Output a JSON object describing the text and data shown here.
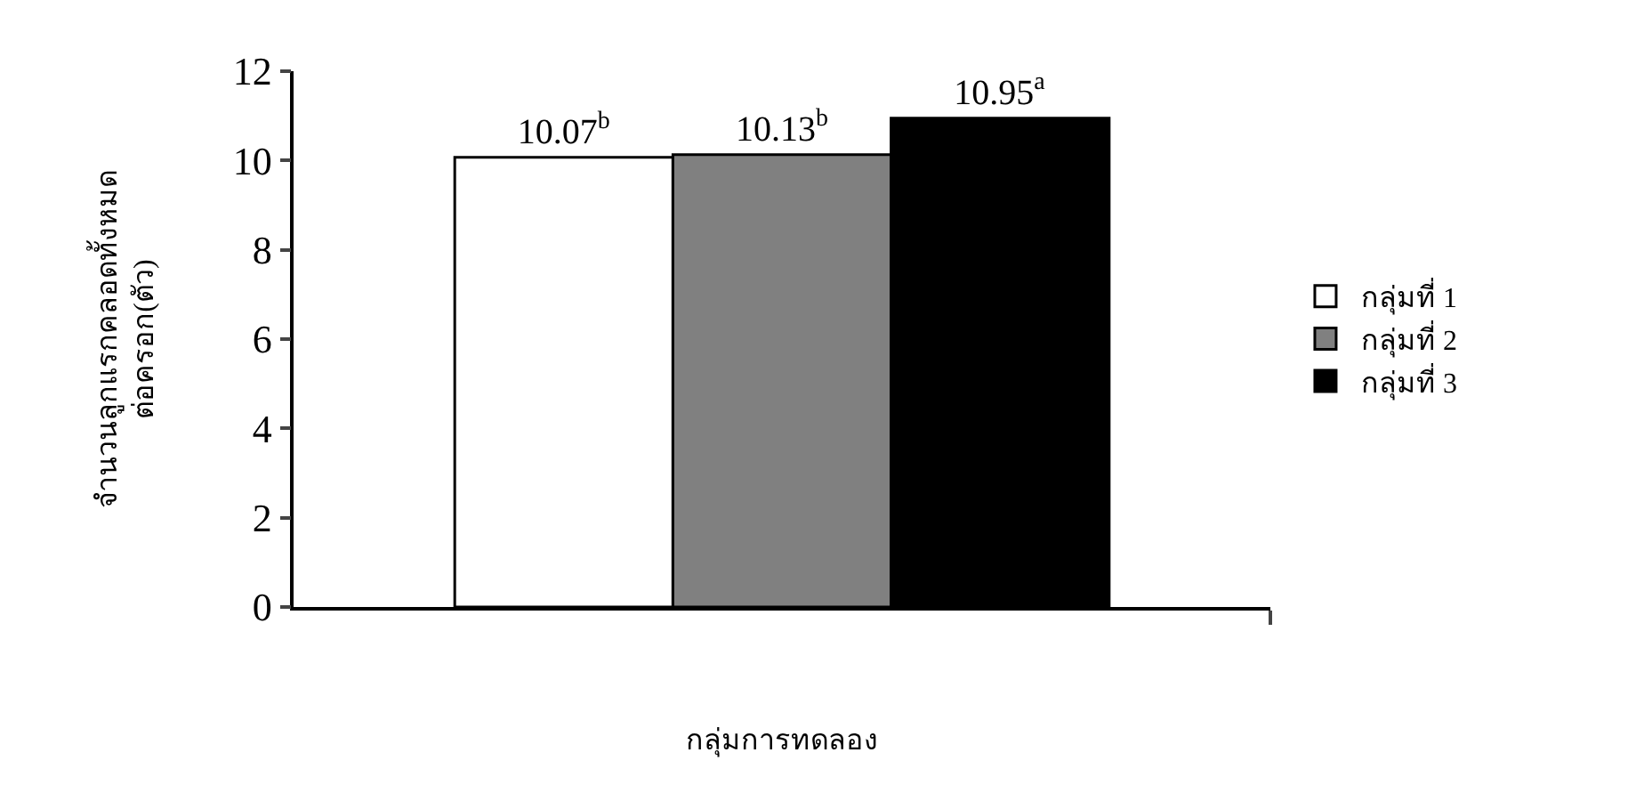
{
  "chart_data": {
    "type": "bar",
    "xlabel": "กลุ่มการทดลอง",
    "ylabel": "จำนวนลูกแรกคลอดทั้งหมด\nต่อครอก(ตัว)",
    "categories": [
      null
    ],
    "series": [
      {
        "name": "กลุ่มที่ 1",
        "color": "#ffffff",
        "values": [
          10.07
        ],
        "value_labels": [
          "10.07$^{b}$"
        ]
      },
      {
        "name": "กลุ่มที่ 2",
        "color": "#808080",
        "values": [
          10.13
        ],
        "value_labels": [
          "10.13$^{b}$"
        ]
      },
      {
        "name": "กลุ่มที่ 3",
        "color": "#000000",
        "values": [
          10.95
        ],
        "value_labels": [
          "10.95$^{a}$"
        ]
      }
    ],
    "ylim": [
      0,
      12
    ],
    "yticks": [
      0,
      2,
      4,
      6,
      8,
      10,
      12
    ],
    "grid": false,
    "legend": "right",
    "tick_labels": "y"
  }
}
